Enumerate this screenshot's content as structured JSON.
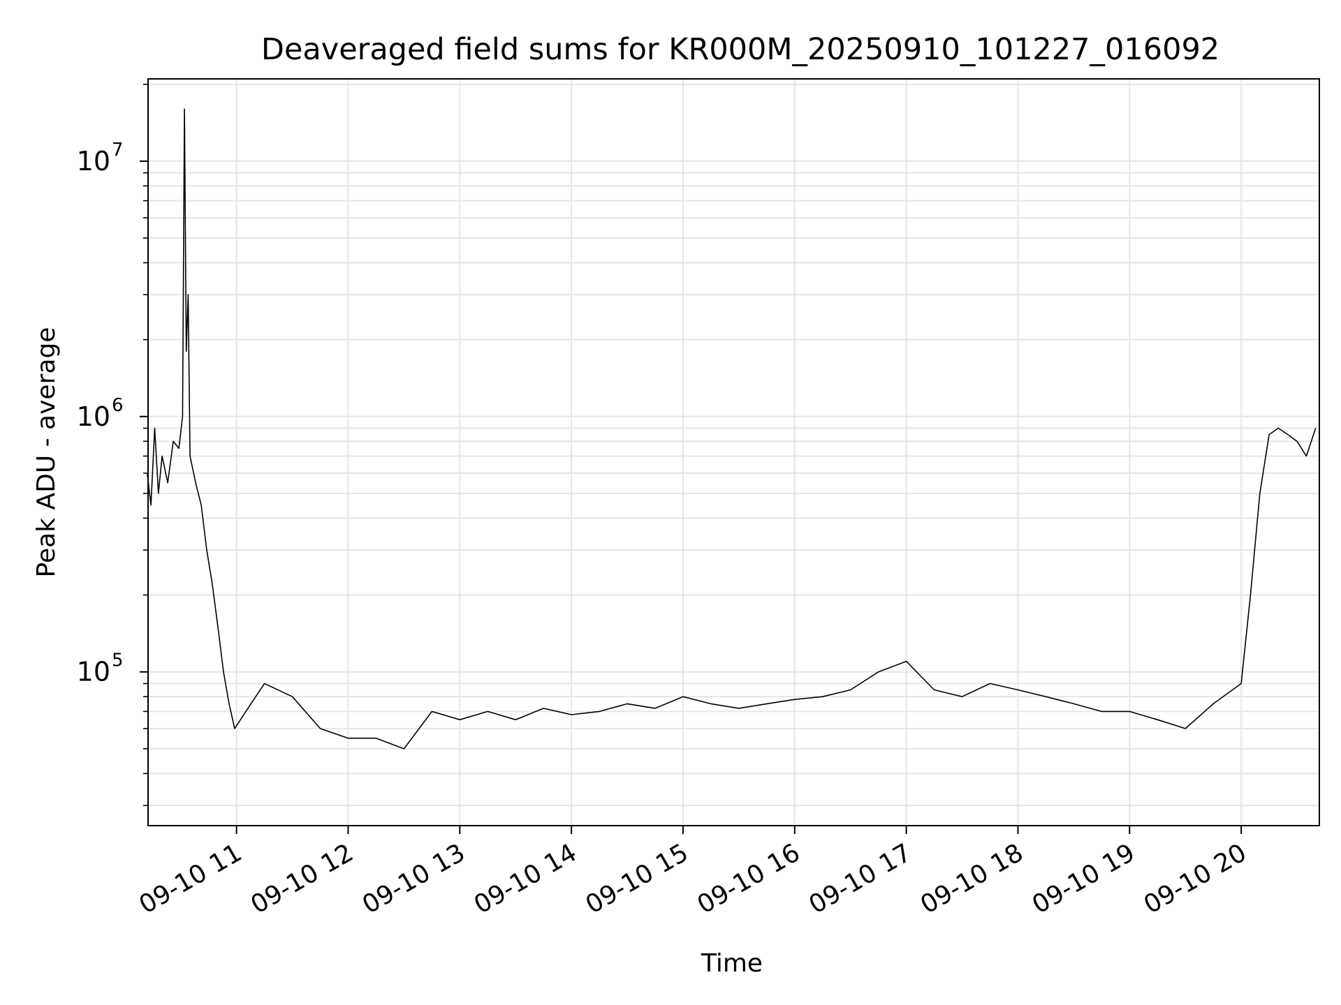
{
  "chart_data": {
    "type": "line",
    "title": "Deaveraged field sums for KR000M_20250910_101227_016092",
    "xlabel": "Time",
    "ylabel": "Peak ADU - average",
    "y_scale": "log",
    "ylim": [
      25000,
      21000000
    ],
    "xlim": [
      "2025-09-10 10:12:27",
      "2025-09-10 20:42:00"
    ],
    "grid": true,
    "line_color": "#000000",
    "x_ticks": [
      {
        "label": "09-10 11",
        "x": "2025-09-10 11:00"
      },
      {
        "label": "09-10 12",
        "x": "2025-09-10 12:00"
      },
      {
        "label": "09-10 13",
        "x": "2025-09-10 13:00"
      },
      {
        "label": "09-10 14",
        "x": "2025-09-10 14:00"
      },
      {
        "label": "09-10 15",
        "x": "2025-09-10 15:00"
      },
      {
        "label": "09-10 16",
        "x": "2025-09-10 16:00"
      },
      {
        "label": "09-10 17",
        "x": "2025-09-10 17:00"
      },
      {
        "label": "09-10 18",
        "x": "2025-09-10 18:00"
      },
      {
        "label": "09-10 19",
        "x": "2025-09-10 19:00"
      },
      {
        "label": "09-10 20",
        "x": "2025-09-10 20:00"
      }
    ],
    "y_ticks": [
      {
        "base": "10",
        "exp": "5",
        "value": 100000
      },
      {
        "base": "10",
        "exp": "6",
        "value": 1000000
      },
      {
        "base": "10",
        "exp": "7",
        "value": 10000000
      }
    ],
    "series": [
      {
        "points": [
          [
            "2025-09-10 10:12",
            600000
          ],
          [
            "2025-09-10 10:14",
            450000
          ],
          [
            "2025-09-10 10:16",
            900000
          ],
          [
            "2025-09-10 10:18",
            500000
          ],
          [
            "2025-09-10 10:20",
            700000
          ],
          [
            "2025-09-10 10:23",
            550000
          ],
          [
            "2025-09-10 10:26",
            800000
          ],
          [
            "2025-09-10 10:29",
            750000
          ],
          [
            "2025-09-10 10:31",
            1000000
          ],
          [
            "2025-09-10 10:32",
            16000000
          ],
          [
            "2025-09-10 10:33",
            1800000
          ],
          [
            "2025-09-10 10:34",
            3000000
          ],
          [
            "2025-09-10 10:35",
            700000
          ],
          [
            "2025-09-10 10:38",
            550000
          ],
          [
            "2025-09-10 10:41",
            450000
          ],
          [
            "2025-09-10 10:44",
            300000
          ],
          [
            "2025-09-10 10:47",
            220000
          ],
          [
            "2025-09-10 10:50",
            150000
          ],
          [
            "2025-09-10 10:53",
            100000
          ],
          [
            "2025-09-10 10:56",
            75000
          ],
          [
            "2025-09-10 10:59",
            60000
          ],
          [
            "2025-09-10 11:05",
            70000
          ],
          [
            "2025-09-10 11:15",
            90000
          ],
          [
            "2025-09-10 11:30",
            80000
          ],
          [
            "2025-09-10 11:45",
            60000
          ],
          [
            "2025-09-10 12:00",
            55000
          ],
          [
            "2025-09-10 12:15",
            55000
          ],
          [
            "2025-09-10 12:30",
            50000
          ],
          [
            "2025-09-10 12:45",
            70000
          ],
          [
            "2025-09-10 13:00",
            65000
          ],
          [
            "2025-09-10 13:15",
            70000
          ],
          [
            "2025-09-10 13:30",
            65000
          ],
          [
            "2025-09-10 13:45",
            72000
          ],
          [
            "2025-09-10 14:00",
            68000
          ],
          [
            "2025-09-10 14:15",
            70000
          ],
          [
            "2025-09-10 14:30",
            75000
          ],
          [
            "2025-09-10 14:45",
            72000
          ],
          [
            "2025-09-10 15:00",
            80000
          ],
          [
            "2025-09-10 15:15",
            75000
          ],
          [
            "2025-09-10 15:30",
            72000
          ],
          [
            "2025-09-10 15:45",
            75000
          ],
          [
            "2025-09-10 16:00",
            78000
          ],
          [
            "2025-09-10 16:15",
            80000
          ],
          [
            "2025-09-10 16:30",
            85000
          ],
          [
            "2025-09-10 16:45",
            100000
          ],
          [
            "2025-09-10 17:00",
            110000
          ],
          [
            "2025-09-10 17:15",
            85000
          ],
          [
            "2025-09-10 17:30",
            80000
          ],
          [
            "2025-09-10 17:45",
            90000
          ],
          [
            "2025-09-10 18:00",
            85000
          ],
          [
            "2025-09-10 18:15",
            80000
          ],
          [
            "2025-09-10 18:30",
            75000
          ],
          [
            "2025-09-10 18:45",
            70000
          ],
          [
            "2025-09-10 19:00",
            70000
          ],
          [
            "2025-09-10 19:15",
            65000
          ],
          [
            "2025-09-10 19:30",
            60000
          ],
          [
            "2025-09-10 19:45",
            75000
          ],
          [
            "2025-09-10 20:00",
            90000
          ],
          [
            "2025-09-10 20:05",
            200000
          ],
          [
            "2025-09-10 20:10",
            500000
          ],
          [
            "2025-09-10 20:15",
            850000
          ],
          [
            "2025-09-10 20:20",
            900000
          ],
          [
            "2025-09-10 20:25",
            850000
          ],
          [
            "2025-09-10 20:30",
            800000
          ],
          [
            "2025-09-10 20:35",
            700000
          ],
          [
            "2025-09-10 20:40",
            900000
          ]
        ]
      }
    ]
  }
}
